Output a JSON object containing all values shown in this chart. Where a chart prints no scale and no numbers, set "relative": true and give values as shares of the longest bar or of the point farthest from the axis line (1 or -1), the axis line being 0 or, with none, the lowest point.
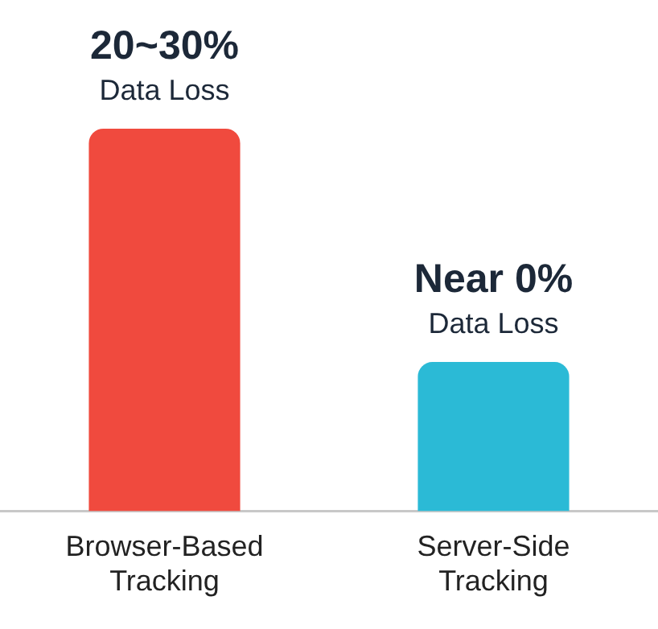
{
  "chart_data": {
    "type": "bar",
    "relative": true,
    "categories": [
      "Browser-Based Tracking",
      "Server-Side Tracking"
    ],
    "values": [
      1,
      0.39
    ],
    "colors": [
      "#f04a3e",
      "#2bbad6"
    ],
    "annotations": [
      {
        "text": "20~30%",
        "x": "Browser-Based Tracking",
        "y": 1
      },
      {
        "text": "Data Loss",
        "x": "Browser-Based Tracking",
        "y": 1
      },
      {
        "text": "Near 0%",
        "x": "Server-Side Tracking",
        "y": 0.39
      },
      {
        "text": "Data Loss",
        "x": "Server-Side Tracking",
        "y": 0.39
      }
    ],
    "grid": false,
    "legend": false
  }
}
